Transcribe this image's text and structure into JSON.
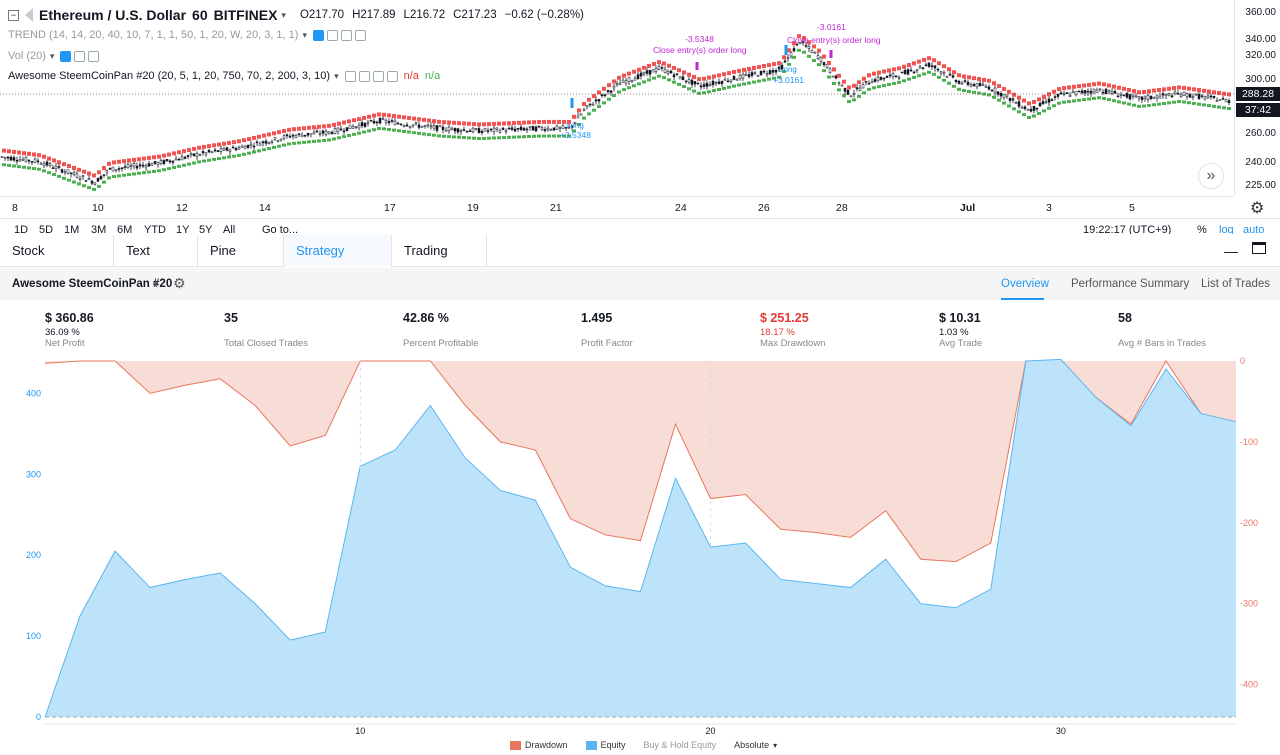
{
  "symbol": {
    "title": "Ethereum / U.S. Dollar",
    "interval": "60",
    "exchange": "BITFINEX",
    "open": "O217.70",
    "high": "H217.89",
    "low": "L216.72",
    "close": "C217.23",
    "change": "−0.62 (−0.28%)"
  },
  "indicators": [
    {
      "text": "TREND (14, 14, 20, 40, 10, 7, 1, 1, 50, 1, 20, W, 20, 3, 1, 1)"
    },
    {
      "text": "Vol (20)"
    },
    {
      "text": "Awesome SteemCoinPan #20 (20, 5, 1, 20, 750, 70, 2, 200, 3, 10)",
      "na1": "n/a",
      "na2": "n/a"
    }
  ],
  "price_axis": {
    "labels": [
      "360.00",
      "340.00",
      "320.00",
      "300.00",
      "280.00",
      "260.00",
      "240.00",
      "225.00"
    ],
    "current_price": "288.28",
    "countdown": "37:42"
  },
  "time_axis": [
    "8",
    "10",
    "12",
    "14",
    "17",
    "19",
    "21",
    "24",
    "26",
    "28",
    "Jul",
    "3",
    "5"
  ],
  "annotations": {
    "close_entry_1": "Close entry(s) order long",
    "close_entry_2": "Close entry(s) order long",
    "pl_1": "-3.5348",
    "pl_2": "-3.0161",
    "long_1": "+3.5348",
    "long_2": "+3.0161",
    "long_label": "Long"
  },
  "ranges": {
    "items": [
      "1D",
      "5D",
      "1M",
      "3M",
      "6M",
      "YTD",
      "1Y",
      "5Y",
      "All"
    ],
    "goto": "Go to...",
    "clock": "19:22:17 (UTC+9)",
    "percent": "%",
    "log": "log",
    "auto": "auto"
  },
  "bottom_tabs": [
    {
      "label": "Stock Screener",
      "has_dropdown": true
    },
    {
      "label": "Text Notes"
    },
    {
      "label": "Pine Editor"
    },
    {
      "label": "Strategy Tester",
      "active": true
    },
    {
      "label": "Trading Panel"
    }
  ],
  "strategy": {
    "name": "Awesome SteemCoinPan #20",
    "tabs": [
      "Overview",
      "Performance Summary",
      "List of Trades"
    ],
    "active_tab": "Overview"
  },
  "metrics": [
    {
      "value": "$ 360.86",
      "sub": "36.09 %",
      "label": "Net Profit"
    },
    {
      "value": "35",
      "sub": "",
      "label": "Total Closed Trades"
    },
    {
      "value": "42.86 %",
      "sub": "",
      "label": "Percent Profitable"
    },
    {
      "value": "1.495",
      "sub": "",
      "label": "Profit Factor"
    },
    {
      "value": "$ 251.25",
      "sub": "18.17 %",
      "label": "Max Drawdown",
      "negative": true
    },
    {
      "value": "$ 10.31",
      "sub": "1.03 %",
      "label": "Avg Trade"
    },
    {
      "value": "58",
      "sub": "",
      "label": "Avg # Bars in Trades"
    }
  ],
  "chart_data": {
    "type": "area",
    "x": [
      1,
      2,
      3,
      4,
      5,
      6,
      7,
      8,
      9,
      10,
      11,
      12,
      13,
      14,
      15,
      16,
      17,
      18,
      19,
      20,
      21,
      22,
      23,
      24,
      25,
      26,
      27,
      28,
      29,
      30,
      31,
      32,
      33,
      34,
      35
    ],
    "x_ticks": [
      "10",
      "20",
      "30"
    ],
    "series": [
      {
        "name": "Equity",
        "color": "#5bb5f0",
        "values": [
          0,
          125,
          205,
          160,
          170,
          178,
          140,
          95,
          105,
          310,
          330,
          385,
          320,
          280,
          268,
          185,
          162,
          155,
          295,
          210,
          215,
          170,
          165,
          160,
          195,
          140,
          135,
          158,
          440,
          442,
          395,
          360,
          430,
          375,
          365
        ]
      },
      {
        "name": "Drawdown",
        "color": "#e8765e",
        "values": [
          -3,
          0,
          0,
          -40,
          -30,
          -22,
          -55,
          -105,
          -92,
          0,
          0,
          0,
          -55,
          -100,
          -110,
          -195,
          -215,
          -222,
          -78,
          -170,
          -165,
          -208,
          -212,
          -218,
          -185,
          -245,
          -248,
          -225,
          0,
          0,
          -45,
          -78,
          0,
          -65,
          -78
        ]
      }
    ],
    "left_axis_ticks": [
      "0",
      "100",
      "200",
      "300",
      "400"
    ],
    "right_axis_ticks": [
      "0",
      "-100",
      "-200",
      "-300",
      "-400"
    ],
    "y_left_range": [
      0,
      440
    ],
    "y_right_range": [
      -440,
      0
    ],
    "legend": [
      "Drawdown",
      "Equity",
      "Buy & Hold Equity",
      "Absolute"
    ]
  },
  "top_chart_series": {
    "price_color": "#131722",
    "upper_band_color": "#f05350",
    "lower_band_color": "#4caf50"
  }
}
